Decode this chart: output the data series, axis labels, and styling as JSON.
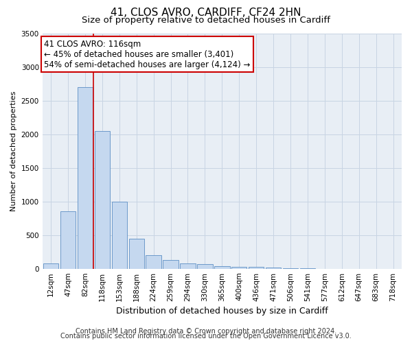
{
  "title_line1": "41, CLOS AVRO, CARDIFF, CF24 2HN",
  "title_line2": "Size of property relative to detached houses in Cardiff",
  "xlabel": "Distribution of detached houses by size in Cardiff",
  "ylabel": "Number of detached properties",
  "categories": [
    "12sqm",
    "47sqm",
    "82sqm",
    "118sqm",
    "153sqm",
    "188sqm",
    "224sqm",
    "259sqm",
    "294sqm",
    "330sqm",
    "365sqm",
    "400sqm",
    "436sqm",
    "471sqm",
    "506sqm",
    "541sqm",
    "577sqm",
    "612sqm",
    "647sqm",
    "683sqm",
    "718sqm"
  ],
  "values": [
    75,
    850,
    2700,
    2050,
    1000,
    450,
    200,
    130,
    75,
    65,
    40,
    30,
    25,
    15,
    10,
    5,
    0,
    0,
    0,
    0,
    0
  ],
  "bar_color": "#c5d8ef",
  "bar_edge_color": "#5b8ec4",
  "grid_color": "#c8d4e3",
  "background_color": "#e8eef5",
  "vline_color": "#cc0000",
  "vline_x": 2.5,
  "annotation_line1": "41 CLOS AVRO: 116sqm",
  "annotation_line2": "← 45% of detached houses are smaller (3,401)",
  "annotation_line3": "54% of semi-detached houses are larger (4,124) →",
  "annotation_box_color": "#ffffff",
  "annotation_border_color": "#cc0000",
  "ylim": [
    0,
    3500
  ],
  "yticks": [
    0,
    500,
    1000,
    1500,
    2000,
    2500,
    3000,
    3500
  ],
  "title1_fontsize": 11,
  "title2_fontsize": 9.5,
  "xlabel_fontsize": 9,
  "ylabel_fontsize": 8,
  "tick_fontsize": 7.5,
  "annotation_fontsize": 8.5,
  "footer_fontsize": 7,
  "footer_line1": "Contains HM Land Registry data © Crown copyright and database right 2024.",
  "footer_line2": "Contains public sector information licensed under the Open Government Licence v3.0."
}
